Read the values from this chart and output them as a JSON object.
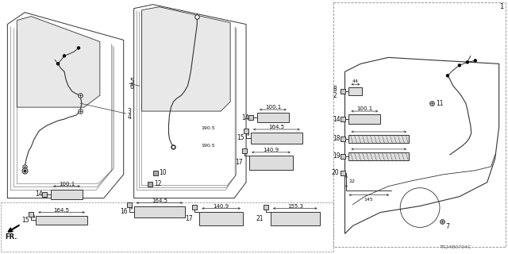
{
  "bg_color": "#ffffff",
  "diagram_code": "TR24B0704C",
  "fig_width": 6.4,
  "fig_height": 3.2,
  "dpi": 100,
  "lc": "#333333",
  "tc": "#111111"
}
